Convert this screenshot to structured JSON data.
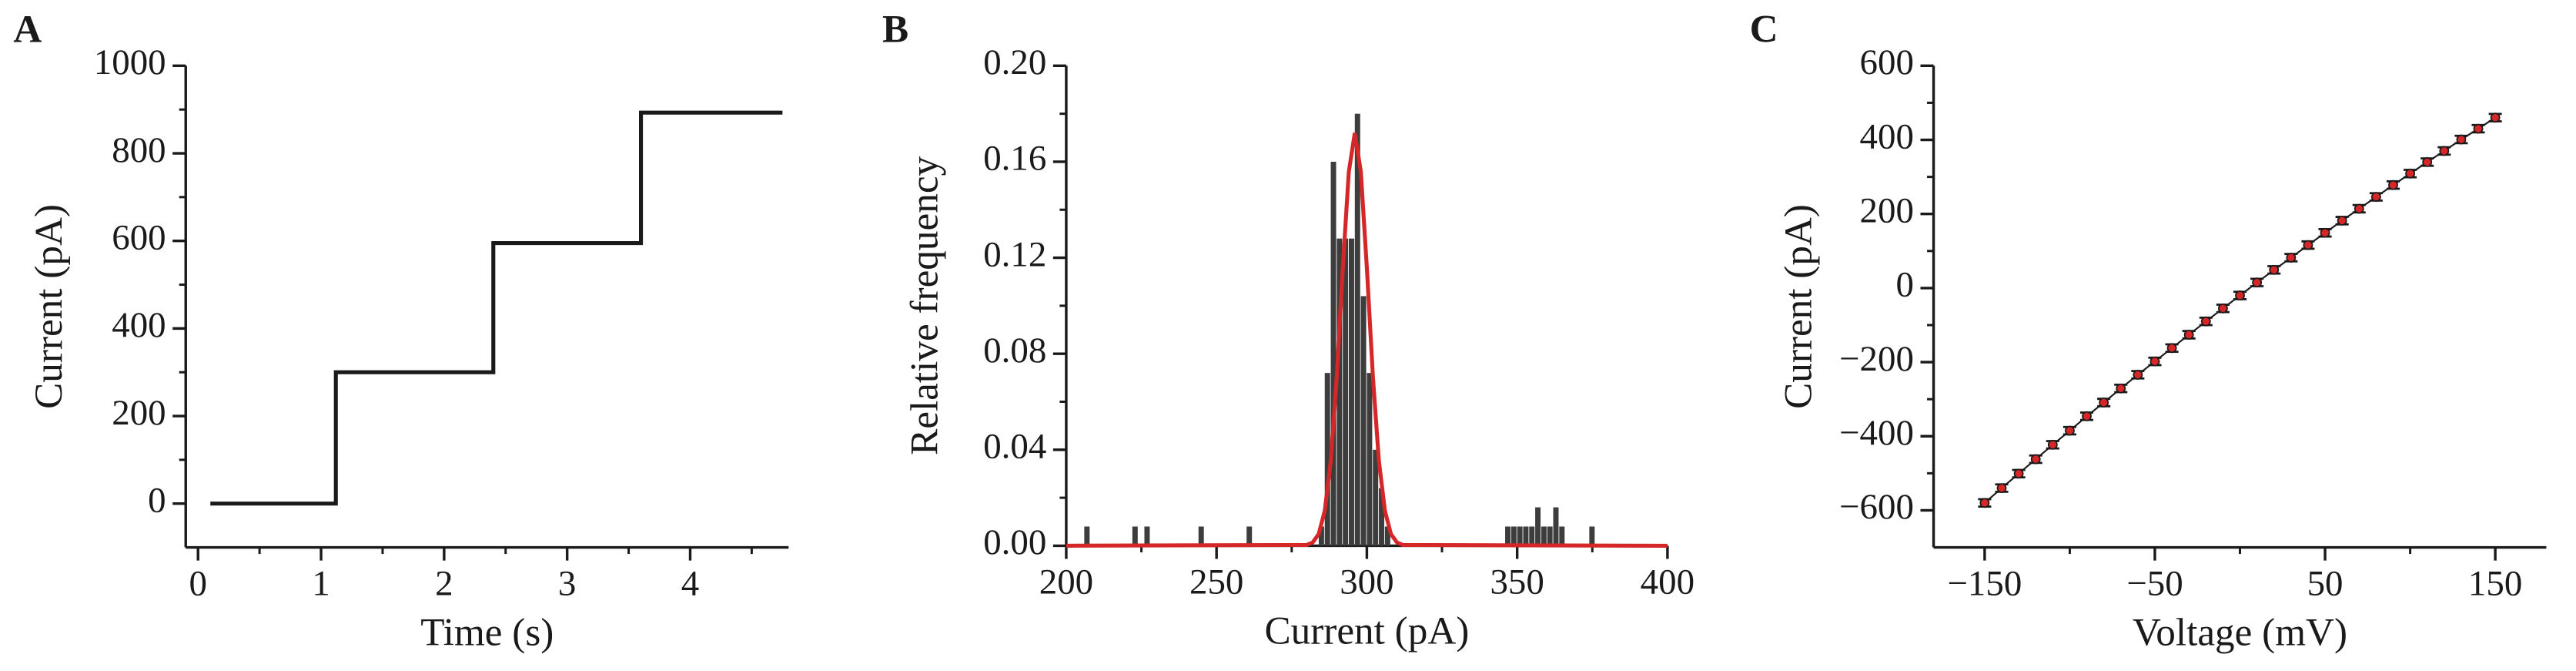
{
  "chart_data": [
    {
      "type": "line",
      "label": "A",
      "xlabel": "Time (s)",
      "ylabel": "Current (pA)",
      "x": [
        0.1,
        1.12,
        1.12,
        2.4,
        2.4,
        3.6,
        3.6,
        4.75
      ],
      "values": [
        0,
        0,
        300,
        300,
        595,
        595,
        893,
        893
      ],
      "color": "#1a1a1a",
      "xlim": [
        -0.1,
        4.8
      ],
      "ylim": [
        -100,
        1000
      ],
      "xticks": [
        0,
        1,
        2,
        3,
        4
      ],
      "yticks": [
        0,
        200,
        400,
        600,
        800,
        1000
      ],
      "xminor": [
        0.5,
        1.5,
        2.5,
        3.5,
        4.5
      ],
      "yminor": [
        100,
        300,
        500,
        700,
        900
      ]
    },
    {
      "type": "histogram",
      "label": "B",
      "xlabel": "Current (pA)",
      "ylabel": "Relative frequency",
      "bins": [
        200,
        202,
        204,
        206,
        208,
        210,
        212,
        214,
        216,
        218,
        220,
        222,
        224,
        226,
        228,
        230,
        232,
        234,
        236,
        238,
        240,
        242,
        244,
        246,
        248,
        250,
        252,
        254,
        256,
        258,
        260,
        262,
        264,
        266,
        268,
        270,
        272,
        274,
        276,
        278,
        280,
        282,
        284,
        286,
        288,
        290,
        292,
        294,
        296,
        298,
        300,
        302,
        304,
        306,
        308,
        310,
        312,
        314,
        316,
        318,
        320,
        322,
        324,
        326,
        328,
        330,
        332,
        334,
        336,
        338,
        340,
        342,
        344,
        346,
        348,
        350,
        352,
        354,
        356,
        358,
        360,
        362,
        364,
        366,
        368,
        370,
        372,
        374,
        376,
        378,
        380
      ],
      "values": [
        0,
        0,
        0,
        0.008,
        0,
        0,
        0,
        0,
        0,
        0,
        0,
        0.008,
        0,
        0.008,
        0,
        0,
        0,
        0,
        0,
        0,
        0,
        0,
        0.008,
        0,
        0,
        0,
        0,
        0,
        0,
        0,
        0.008,
        0,
        0,
        0,
        0,
        0,
        0,
        0,
        0,
        0,
        0,
        0,
        0.008,
        0.072,
        0.16,
        0.128,
        0.128,
        0.128,
        0.18,
        0.104,
        0.072,
        0.04,
        0.024,
        0.008,
        0,
        0,
        0,
        0,
        0,
        0,
        0,
        0,
        0,
        0,
        0,
        0,
        0,
        0,
        0,
        0,
        0,
        0,
        0,
        0.008,
        0.008,
        0.008,
        0.008,
        0.008,
        0.016,
        0.008,
        0.008,
        0.016,
        0.008,
        0,
        0,
        0,
        0,
        0.008,
        0,
        0
      ],
      "color": "#3d3d3d",
      "fit": {
        "x": [
          200,
          280,
          282,
          284,
          286,
          288,
          290,
          292,
          294,
          296,
          298,
          300,
          302,
          304,
          306,
          308,
          310,
          312,
          400
        ],
        "values": [
          0,
          0.0003,
          0.0014,
          0.0049,
          0.0146,
          0.0354,
          0.0707,
          0.1159,
          0.1558,
          0.172,
          0.1558,
          0.1159,
          0.0707,
          0.0354,
          0.0146,
          0.0049,
          0.0014,
          0.0003,
          0
        ],
        "color": "#d62728"
      },
      "xlim": [
        200,
        400
      ],
      "ylim": [
        0,
        0.2
      ],
      "xticks": [
        200,
        250,
        300,
        350,
        400
      ],
      "yticks": [
        {
          "value": 0,
          "label": "0.00"
        },
        {
          "value": 0.04,
          "label": "0.04"
        },
        {
          "value": 0.08,
          "label": "0.08"
        },
        {
          "value": 0.12,
          "label": "0.12"
        },
        {
          "value": 0.16,
          "label": "0.16"
        },
        {
          "value": 0.2,
          "label": "0.20"
        }
      ],
      "xminor": [
        225,
        275,
        325,
        375
      ],
      "yminor": [
        0.02,
        0.06,
        0.1,
        0.14,
        0.18
      ]
    },
    {
      "type": "scatter",
      "label": "C",
      "xlabel": "Voltage (mV)",
      "ylabel": "Current (pA)",
      "x": [
        -150,
        -140,
        -130,
        -120,
        -110,
        -100,
        -90,
        -80,
        -70,
        -60,
        -50,
        -40,
        -30,
        -20,
        -10,
        0,
        10,
        20,
        30,
        40,
        50,
        60,
        70,
        80,
        90,
        100,
        110,
        120,
        130,
        140,
        150
      ],
      "values": [
        -580,
        -540,
        -501,
        -462,
        -423,
        -385,
        -346,
        -309,
        -271,
        -234,
        -198,
        -162,
        -126,
        -90,
        -55,
        -20,
        15,
        49,
        82,
        116,
        149,
        182,
        214,
        246,
        278,
        309,
        340,
        370,
        401,
        430,
        460
      ],
      "errors": [
        10,
        10,
        10,
        10,
        10,
        10,
        10,
        10,
        10,
        10,
        10,
        10,
        10,
        10,
        10,
        10,
        10,
        10,
        10,
        10,
        10,
        10,
        10,
        10,
        10,
        10,
        10,
        10,
        10,
        10,
        10
      ],
      "color": "#d62728",
      "ecolor": "#1a1a1a",
      "xlim": [
        -180,
        180
      ],
      "ylim": [
        -700,
        600
      ],
      "xticks": [
        {
          "value": -150,
          "label": "−150"
        },
        {
          "value": -50,
          "label": "−50"
        },
        50,
        150
      ],
      "yticks": [
        {
          "value": -600,
          "label": "−600"
        },
        {
          "value": -400,
          "label": "−400"
        },
        {
          "value": -200,
          "label": "−200"
        },
        0,
        200,
        400,
        600
      ],
      "xminor": [
        -100,
        0,
        100
      ],
      "yminor": [
        -500,
        -300,
        -100,
        100,
        300,
        500
      ]
    }
  ]
}
